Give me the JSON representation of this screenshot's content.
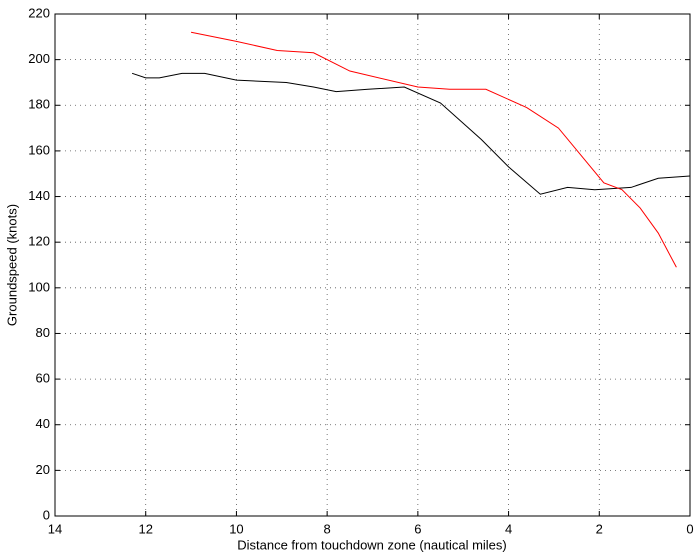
{
  "chart_data": {
    "type": "line",
    "xlabel": "Distance from touchdown zone (nautical miles)",
    "ylabel": "Groundspeed (knots)",
    "xlim": [
      14,
      0
    ],
    "xticks": [
      14,
      12,
      10,
      8,
      6,
      4,
      2,
      0
    ],
    "ylim": [
      0,
      220
    ],
    "yticks": [
      0,
      20,
      40,
      60,
      80,
      100,
      120,
      140,
      160,
      180,
      200,
      220
    ],
    "grid": true,
    "series": [
      {
        "color": "#000000",
        "x": [
          12.3,
          12.0,
          11.7,
          11.2,
          10.7,
          10.0,
          8.9,
          8.3,
          7.8,
          7.1,
          6.3,
          5.5,
          4.6,
          4.0,
          3.3,
          2.7,
          2.1,
          1.3,
          0.7,
          0
        ],
        "values": [
          194,
          192,
          192,
          194,
          194,
          191,
          190,
          188,
          186,
          187,
          188,
          181,
          165,
          153,
          141,
          144,
          143,
          144,
          148,
          149
        ]
      },
      {
        "color": "#ff0000",
        "x": [
          11.0,
          10.0,
          9.1,
          8.3,
          7.5,
          6.0,
          5.3,
          4.5,
          3.6,
          2.9,
          1.9,
          1.5,
          1.1,
          0.7,
          0.3
        ],
        "values": [
          212,
          208,
          204,
          203,
          195,
          188,
          187,
          187,
          179,
          170,
          146,
          143,
          135,
          124,
          109
        ]
      }
    ]
  }
}
